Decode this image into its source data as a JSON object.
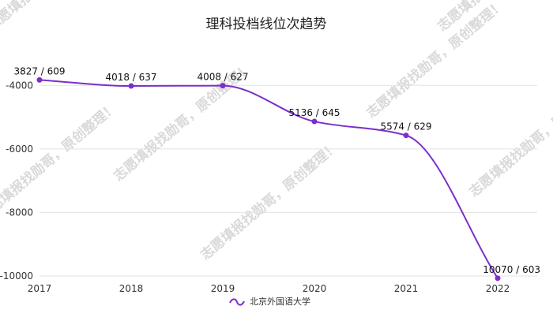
{
  "watermark": {
    "text": "志愿填报找勋哥，原创整理！",
    "color": "#d9d9d9"
  },
  "chart_data": {
    "type": "line",
    "title": "理科投档线位次趋势",
    "categories": [
      "2017",
      "2018",
      "2019",
      "2020",
      "2021",
      "2022"
    ],
    "series": [
      {
        "name": "北京外国语大学",
        "color": "#7b2fc9",
        "values": [
          -3827,
          -4018,
          -4008,
          -5136,
          -5574,
          -10070
        ],
        "data_labels": [
          "3827 / 609",
          "4018 / 637",
          "4008 / 627",
          "5136 / 645",
          "5574 / 629",
          "10070 / 603"
        ]
      }
    ],
    "ylim": [
      -10000,
      -3000
    ],
    "yticks": [
      -10000,
      -8000,
      -6000,
      -4000
    ],
    "ytick_labels": [
      "-10000",
      "-8000",
      "-6000",
      "-4000"
    ],
    "grid": true,
    "legend": "bottom-center",
    "xlabel": "",
    "ylabel": ""
  }
}
